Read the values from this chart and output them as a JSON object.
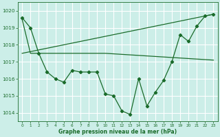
{
  "xlabel": "Graphe pression niveau de la mer (hPa)",
  "bg_color": "#cceee8",
  "grid_color": "#ffffff",
  "line_color": "#1a6b2a",
  "xlim": [
    -0.5,
    23.5
  ],
  "ylim": [
    1013.5,
    1020.5
  ],
  "yticks": [
    1014,
    1015,
    1016,
    1017,
    1018,
    1019,
    1020
  ],
  "xticks": [
    0,
    1,
    2,
    3,
    4,
    5,
    6,
    7,
    8,
    9,
    10,
    11,
    12,
    13,
    14,
    15,
    16,
    17,
    18,
    19,
    20,
    21,
    22,
    23
  ],
  "line1_x": [
    0,
    1,
    2,
    3,
    4,
    5,
    6,
    7,
    8,
    9,
    10,
    11,
    12,
    13,
    14,
    15,
    16,
    17,
    18,
    19,
    20,
    21,
    22,
    23
  ],
  "line1_y": [
    1019.6,
    1019.0,
    1017.5,
    1016.4,
    1016.0,
    1015.8,
    1016.5,
    1016.4,
    1016.4,
    1016.4,
    1015.1,
    1015.0,
    1014.1,
    1013.9,
    1016.0,
    1014.4,
    1015.2,
    1015.9,
    1017.0,
    1018.6,
    1018.2,
    1019.1,
    1019.7,
    1019.8
  ],
  "line2_x": [
    0,
    23
  ],
  "line2_y": [
    1017.5,
    1019.8
  ],
  "line3_x": [
    0,
    1,
    10,
    23
  ],
  "line3_y": [
    1019.5,
    1017.5,
    1017.5,
    1017.1
  ]
}
